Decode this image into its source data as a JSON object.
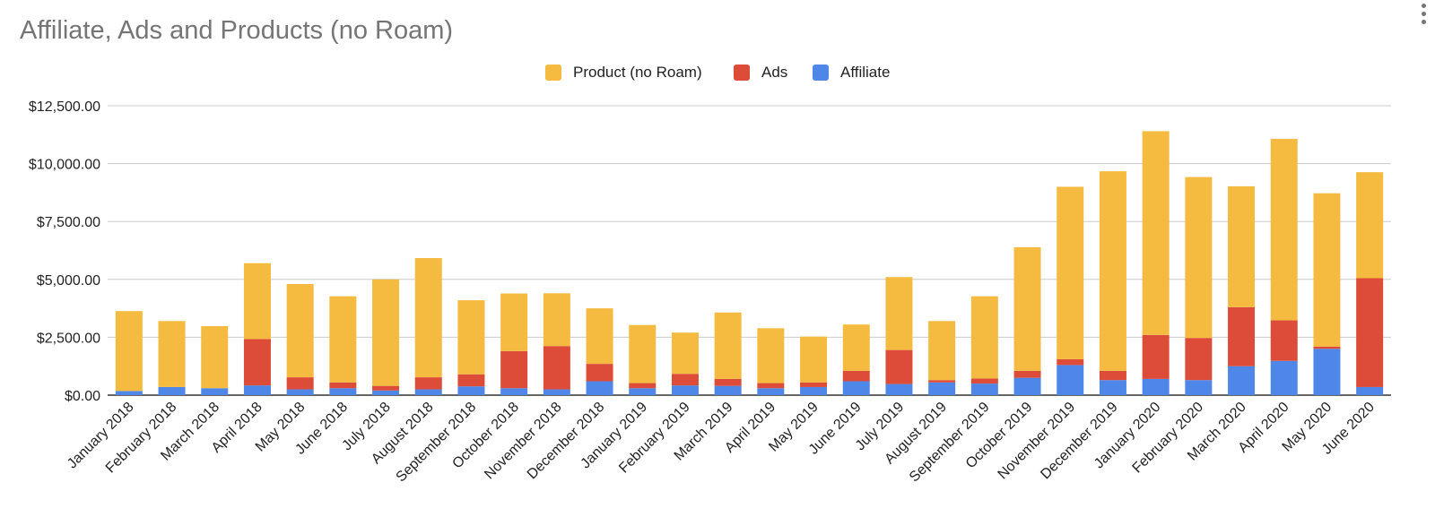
{
  "title": "Affiliate, Ads and Products (no Roam)",
  "menu_icon": "more-vert-icon",
  "legend": [
    {
      "name": "Product (no Roam)",
      "color": "#f4bb40"
    },
    {
      "name": "Ads",
      "color": "#dd4b39"
    },
    {
      "name": "Affiliate",
      "color": "#4f87e9"
    }
  ],
  "chart_data": {
    "type": "bar",
    "stacked": true,
    "title": "Affiliate, Ads and Products (no Roam)",
    "legend_position": "top",
    "grid": true,
    "ylim": [
      0,
      12500
    ],
    "yticks": [
      0,
      2500,
      5000,
      7500,
      10000,
      12500
    ],
    "ytick_labels": [
      "$0.00",
      "$2,500.00",
      "$5,000.00",
      "$7,500.00",
      "$10,000.00",
      "$12,500.00"
    ],
    "categories": [
      "January 2018",
      "February 2018",
      "March 2018",
      "April 2018",
      "May 2018",
      "June 2018",
      "July 2018",
      "August 2018",
      "September 2018",
      "October 2018",
      "November 2018",
      "December 2018",
      "January 2019",
      "February 2019",
      "March 2019",
      "April 2019",
      "May 2019",
      "June 2019",
      "July 2019",
      "August 2019",
      "September 2019",
      "October 2019",
      "November 2019",
      "December 2019",
      "January 2020",
      "February 2020",
      "March 2020",
      "April 2020",
      "May 2020",
      "June 2020"
    ],
    "series": [
      {
        "name": "Affiliate",
        "color": "#4f87e9",
        "values": [
          180,
          350,
          300,
          420,
          250,
          300,
          200,
          250,
          380,
          300,
          250,
          600,
          300,
          420,
          400,
          300,
          350,
          600,
          480,
          550,
          500,
          750,
          1300,
          650,
          700,
          650,
          1250,
          1480,
          2000,
          350
        ]
      },
      {
        "name": "Ads",
        "color": "#dd4b39",
        "values": [
          0,
          0,
          0,
          2000,
          520,
          250,
          200,
          520,
          520,
          1600,
          1870,
          750,
          220,
          500,
          300,
          220,
          200,
          450,
          1470,
          100,
          220,
          300,
          250,
          400,
          1900,
          1820,
          2550,
          1750,
          100,
          4700
        ]
      },
      {
        "name": "Product (no Roam)",
        "color": "#f4bb40",
        "values": [
          3450,
          2850,
          2680,
          3280,
          4030,
          3720,
          4600,
          5150,
          3200,
          2490,
          2280,
          2400,
          2510,
          1780,
          2870,
          2370,
          1980,
          2000,
          3150,
          2550,
          3550,
          5340,
          7450,
          8620,
          8800,
          6950,
          5220,
          7840,
          6620,
          4580
        ]
      }
    ]
  }
}
